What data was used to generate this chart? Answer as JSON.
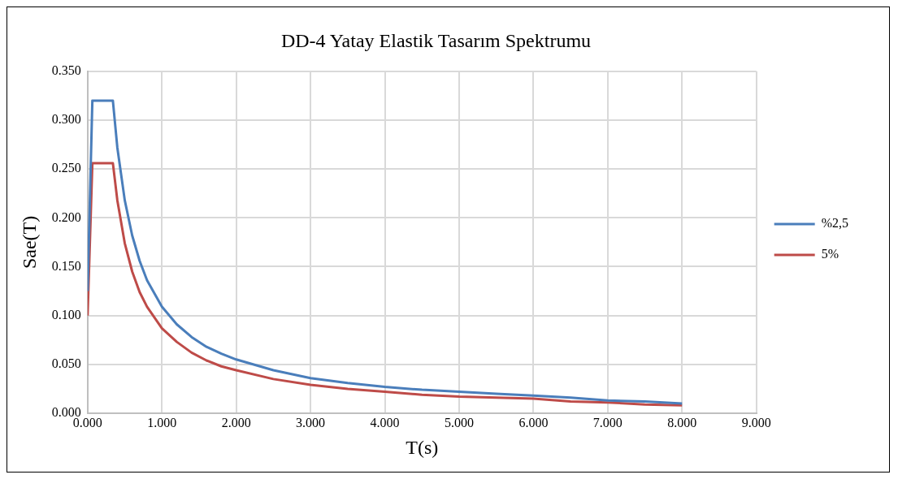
{
  "chart_data": {
    "type": "line",
    "title": "DD-4 Yatay Elastik Tasarım Spektrumu",
    "xlabel": "T(s)",
    "ylabel": "Sae(T)",
    "x": [
      0,
      0.064,
      0.34,
      0.4,
      0.5,
      0.6,
      0.7,
      0.8,
      1.0,
      1.2,
      1.4,
      1.6,
      1.8,
      2.0,
      2.5,
      3,
      3.5,
      4,
      4.5,
      5,
      5.5,
      6,
      6.5,
      7,
      7.5,
      8
    ],
    "series": [
      {
        "name": "%2,5",
        "color": "#4a7ebb",
        "values": [
          0.125,
          0.32,
          0.32,
          0.272,
          0.218,
          0.182,
          0.156,
          0.136,
          0.109,
          0.091,
          0.078,
          0.068,
          0.061,
          0.055,
          0.044,
          0.036,
          0.031,
          0.027,
          0.024,
          0.022,
          0.02,
          0.018,
          0.016,
          0.013,
          0.012,
          0.01
        ]
      },
      {
        "name": "5%",
        "color": "#be4b48",
        "values": [
          0.1,
          0.256,
          0.256,
          0.218,
          0.174,
          0.145,
          0.124,
          0.109,
          0.087,
          0.073,
          0.062,
          0.054,
          0.048,
          0.044,
          0.035,
          0.029,
          0.025,
          0.022,
          0.019,
          0.017,
          0.016,
          0.015,
          0.012,
          0.011,
          0.009,
          0.008
        ]
      }
    ],
    "xlim": [
      0,
      9
    ],
    "xticks": [
      {
        "value": 0,
        "label": "0.000"
      },
      {
        "value": 1,
        "label": "1.000"
      },
      {
        "value": 2,
        "label": "2.000"
      },
      {
        "value": 3,
        "label": "3.000"
      },
      {
        "value": 4,
        "label": "4.000"
      },
      {
        "value": 5,
        "label": "5.000"
      },
      {
        "value": 6,
        "label": "6.000"
      },
      {
        "value": 7,
        "label": "7.000"
      },
      {
        "value": 8,
        "label": "8.000"
      },
      {
        "value": 9,
        "label": "9.000"
      }
    ],
    "ylim": [
      0,
      0.35
    ],
    "yticks": [
      {
        "value": 0,
        "label": "0.000"
      },
      {
        "value": 0.05,
        "label": "0.050"
      },
      {
        "value": 0.1,
        "label": "0.100"
      },
      {
        "value": 0.15,
        "label": "0.150"
      },
      {
        "value": 0.2,
        "label": "0.200"
      },
      {
        "value": 0.25,
        "label": "0.250"
      },
      {
        "value": 0.3,
        "label": "0.300"
      },
      {
        "value": 0.35,
        "label": "0.350"
      }
    ],
    "grid": true,
    "legend": "right",
    "marker": "none",
    "line_style": "solid"
  }
}
